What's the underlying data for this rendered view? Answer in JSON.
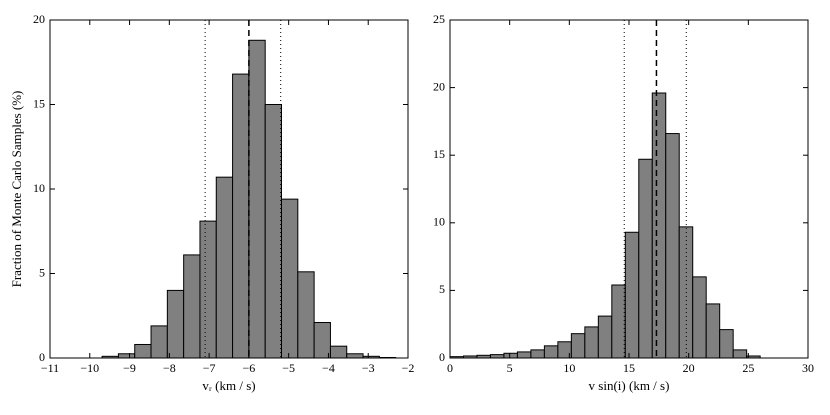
{
  "chart_data": [
    {
      "type": "histogram",
      "ylabel": "Fraction of Monte Carlo Samples (%)",
      "xlabel": "vᵣ (km / s)",
      "color": "#808080",
      "edgecolor": "#000000",
      "bins": [
        -9.69,
        -9.28,
        -8.87,
        -8.46,
        -8.05,
        -7.64,
        -7.23,
        -6.82,
        -6.41,
        -6.0,
        -5.59,
        -5.18,
        -4.77,
        -4.36,
        -3.95,
        -3.54,
        -3.13,
        -2.72,
        -2.31
      ],
      "counts": [
        0.1,
        0.25,
        0.8,
        1.9,
        4.0,
        6.1,
        8.1,
        10.7,
        16.8,
        18.8,
        15.0,
        9.4,
        5.1,
        2.1,
        0.7,
        0.25,
        0.1,
        0.03
      ],
      "vlines": [
        {
          "value": -6.0,
          "style": "dashed"
        },
        {
          "value": -7.1,
          "style": "dotted"
        },
        {
          "value": -5.2,
          "style": "dotted"
        }
      ],
      "xlim": [
        -11,
        -2
      ],
      "xticks": [
        {
          "value": -11,
          "label": "−11"
        },
        {
          "value": -10,
          "label": "−10"
        },
        {
          "value": -9,
          "label": "−9"
        },
        {
          "value": -8,
          "label": "−8"
        },
        {
          "value": -7,
          "label": "−7"
        },
        {
          "value": -6,
          "label": "−6"
        },
        {
          "value": -5,
          "label": "−5"
        },
        {
          "value": -4,
          "label": "−4"
        },
        {
          "value": -3,
          "label": "−3"
        },
        {
          "value": -2,
          "label": "−2"
        }
      ],
      "ylim": [
        0,
        20
      ],
      "yticks": [
        0,
        5,
        10,
        15,
        20
      ]
    },
    {
      "type": "histogram",
      "xlabel": "v sin(i) (km / s)",
      "color": "#808080",
      "edgecolor": "#000000",
      "bins": [
        0,
        1.13,
        2.26,
        3.39,
        4.52,
        5.65,
        6.78,
        7.91,
        9.04,
        10.17,
        11.3,
        12.43,
        13.56,
        14.69,
        15.82,
        16.95,
        18.08,
        19.21,
        20.34,
        21.47,
        22.6,
        23.73,
        24.86,
        25.99
      ],
      "counts": [
        0.1,
        0.15,
        0.2,
        0.25,
        0.35,
        0.45,
        0.6,
        0.9,
        1.2,
        1.8,
        2.3,
        3.1,
        5.4,
        9.3,
        14.7,
        19.6,
        16.6,
        9.7,
        6.0,
        4.0,
        2.1,
        0.6,
        0.15
      ],
      "vlines": [
        {
          "value": 17.3,
          "style": "dashed"
        },
        {
          "value": 14.6,
          "style": "dotted"
        },
        {
          "value": 19.8,
          "style": "dotted"
        }
      ],
      "xlim": [
        0,
        30
      ],
      "xticks": [
        0,
        5,
        10,
        15,
        20,
        25,
        30
      ],
      "ylim": [
        0,
        25
      ],
      "yticks": [
        0,
        5,
        10,
        15,
        20,
        25
      ]
    }
  ]
}
